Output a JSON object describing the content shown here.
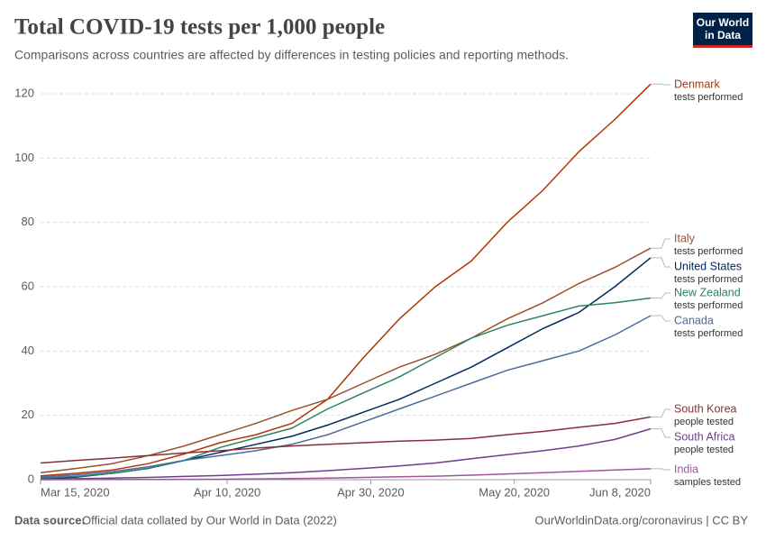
{
  "chart_data": {
    "type": "line",
    "title": "Total COVID-19 tests per 1,000 people",
    "subtitle": "Comparisons across countries are affected by differences in testing policies and reporting methods.",
    "logo": [
      "Our World",
      "in Data"
    ],
    "source_label": "Data source:",
    "source": "Official data collated by Our World in Data (2022)",
    "footer_right": "OurWorldinData.org/coronavirus | CC BY",
    "x": [
      "2020-03-15",
      "2020-03-20",
      "2020-03-25",
      "2020-03-30",
      "2020-04-04",
      "2020-04-09",
      "2020-04-14",
      "2020-04-19",
      "2020-04-24",
      "2020-04-29",
      "2020-05-04",
      "2020-05-09",
      "2020-05-14",
      "2020-05-19",
      "2020-05-24",
      "2020-05-29",
      "2020-06-03",
      "2020-06-08"
    ],
    "xlim": [
      "2020-03-15",
      "2020-06-08"
    ],
    "xticks": [
      {
        "value": "2020-03-15",
        "label": "Mar 15, 2020"
      },
      {
        "value": "2020-04-10",
        "label": "Apr 10, 2020"
      },
      {
        "value": "2020-04-30",
        "label": "Apr 30, 2020"
      },
      {
        "value": "2020-05-20",
        "label": "May 20, 2020"
      },
      {
        "value": "2020-06-08",
        "label": "Jun 8, 2020"
      }
    ],
    "ylim": [
      0,
      120
    ],
    "yticks": [
      0,
      20,
      40,
      60,
      80,
      100,
      120
    ],
    "grid": true,
    "series": [
      {
        "name": "Denmark",
        "unit": "tests performed",
        "color": "#b13507",
        "values": [
          1.2,
          2,
          3,
          5,
          8,
          11.5,
          14,
          17.5,
          25,
          38,
          50,
          60,
          68,
          80,
          90,
          102,
          112,
          123
        ]
      },
      {
        "name": "Italy",
        "unit": "tests performed",
        "color": "#9a5129",
        "values": [
          2.2,
          3.5,
          5,
          7.5,
          10.5,
          14,
          17.5,
          21.5,
          25,
          30,
          35,
          39,
          44,
          50,
          55,
          61,
          66,
          72
        ]
      },
      {
        "name": "United States",
        "unit": "tests performed",
        "color": "#00295b",
        "values": [
          0.2,
          0.8,
          2,
          3.5,
          6,
          8.5,
          11,
          13.5,
          17,
          21,
          25,
          30,
          35,
          41,
          47,
          52,
          60,
          69
        ]
      },
      {
        "name": "New Zealand",
        "unit": "tests performed",
        "color": "#2c8465",
        "values": [
          0.5,
          1,
          2,
          3.5,
          6,
          10,
          13,
          16,
          22,
          27,
          32,
          38,
          44,
          48,
          51,
          54,
          55,
          56.5
        ]
      },
      {
        "name": "Canada",
        "unit": "tests performed",
        "color": "#4c6a9c",
        "values": [
          0.8,
          1.5,
          2.5,
          4,
          6,
          7.5,
          9,
          11,
          14,
          18,
          22,
          26,
          30,
          34,
          37,
          40,
          45,
          51
        ]
      },
      {
        "name": "South Korea",
        "unit": "people tested",
        "color": "#883039",
        "values": [
          5.2,
          6,
          6.7,
          7.5,
          8.3,
          9,
          9.8,
          10.5,
          11,
          11.5,
          12,
          12.3,
          12.8,
          14,
          15,
          16.3,
          17.5,
          19.5
        ]
      },
      {
        "name": "South Africa",
        "unit": "people tested",
        "color": "#6d3e91",
        "values": [
          0.1,
          0.3,
          0.5,
          0.7,
          1,
          1.3,
          1.7,
          2.2,
          2.8,
          3.5,
          4.3,
          5.2,
          6.5,
          7.8,
          9,
          10.5,
          12.5,
          15.8
        ]
      },
      {
        "name": "India",
        "unit": "samples tested",
        "color": "#a2559c",
        "values": [
          0.01,
          0.02,
          0.05,
          0.08,
          0.1,
          0.15,
          0.25,
          0.35,
          0.5,
          0.7,
          0.9,
          1.1,
          1.4,
          1.8,
          2.2,
          2.6,
          3,
          3.4
        ]
      }
    ]
  }
}
